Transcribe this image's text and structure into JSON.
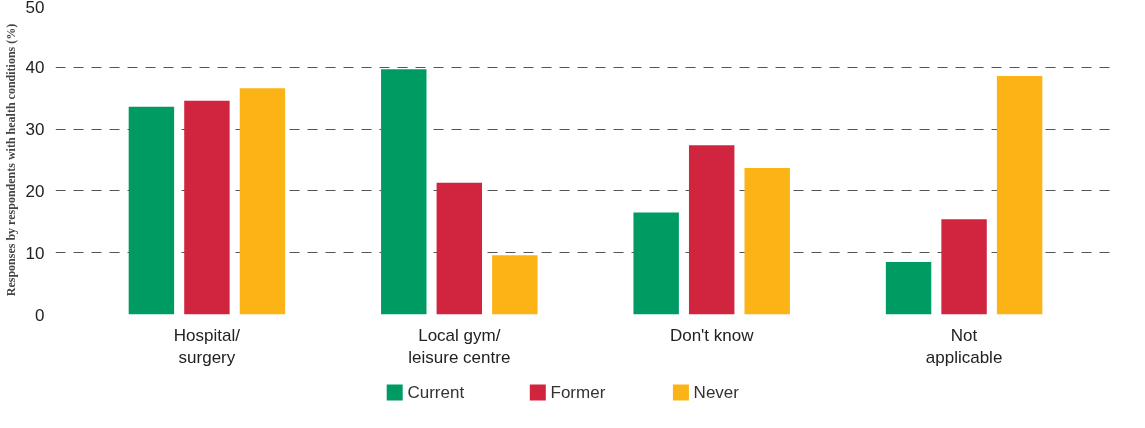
{
  "chart_data": {
    "type": "bar",
    "ylabel": "Responses by respondents with health conditions (%)",
    "categories": [
      "Hospital/ surgery",
      "Local gym/ leisure centre",
      "Don't know",
      "Not applicable"
    ],
    "series": [
      {
        "name": "Current",
        "color": "#009a63",
        "values": [
          33.6,
          39.7,
          16.5,
          8.5
        ]
      },
      {
        "name": "Former",
        "color": "#d0243f",
        "values": [
          34.6,
          21.3,
          27.4,
          15.4
        ]
      },
      {
        "name": "Never",
        "color": "#fbb316",
        "values": [
          36.6,
          9.6,
          23.7,
          38.6
        ]
      }
    ],
    "ylim": [
      0,
      50
    ],
    "yticks": [
      0,
      10,
      20,
      30,
      40,
      50
    ],
    "grid": "y",
    "legend": "bottom"
  }
}
